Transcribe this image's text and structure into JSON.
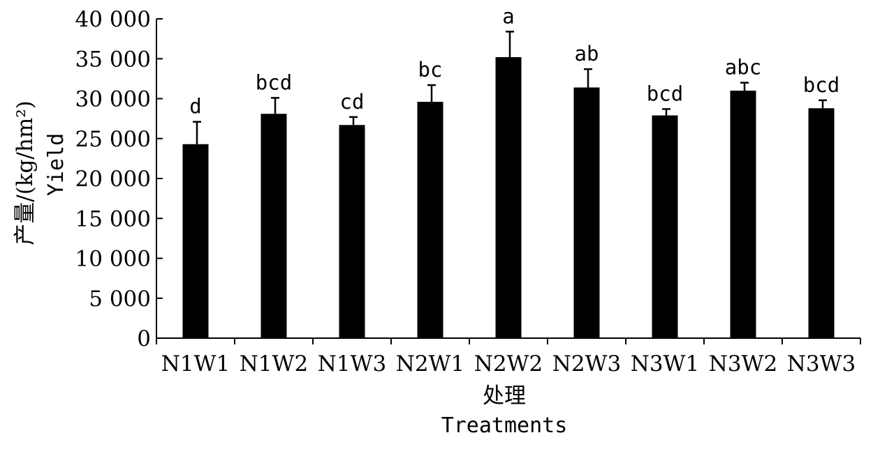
{
  "chart_data": {
    "type": "bar",
    "title": "",
    "xlabel": "处理",
    "xlabel_en": "Treatments",
    "ylabel": "产量/(kg/hm²)",
    "ylabel_en": "Yield",
    "ylim": [
      0,
      40000
    ],
    "yticks": [
      0,
      5000,
      10000,
      15000,
      20000,
      25000,
      30000,
      35000,
      40000
    ],
    "ytick_labels": [
      "0",
      "5 000",
      "10 000",
      "15 000",
      "20 000",
      "25 000",
      "30 000",
      "35 000",
      "40 000"
    ],
    "categories": [
      "N1W1",
      "N1W2",
      "N1W3",
      "N2W1",
      "N2W2",
      "N2W3",
      "N3W1",
      "N3W2",
      "N3W3"
    ],
    "values": [
      24300,
      28100,
      26700,
      29600,
      35200,
      31400,
      27900,
      31000,
      28800
    ],
    "errors": [
      2800,
      2000,
      1000,
      2100,
      3200,
      2300,
      800,
      1000,
      1000
    ],
    "significance": [
      "d",
      "bcd",
      "cd",
      "bc",
      "a",
      "ab",
      "bcd",
      "abc",
      "bcd"
    ],
    "bar_color": "#000000",
    "grid": false,
    "legend": "none"
  }
}
